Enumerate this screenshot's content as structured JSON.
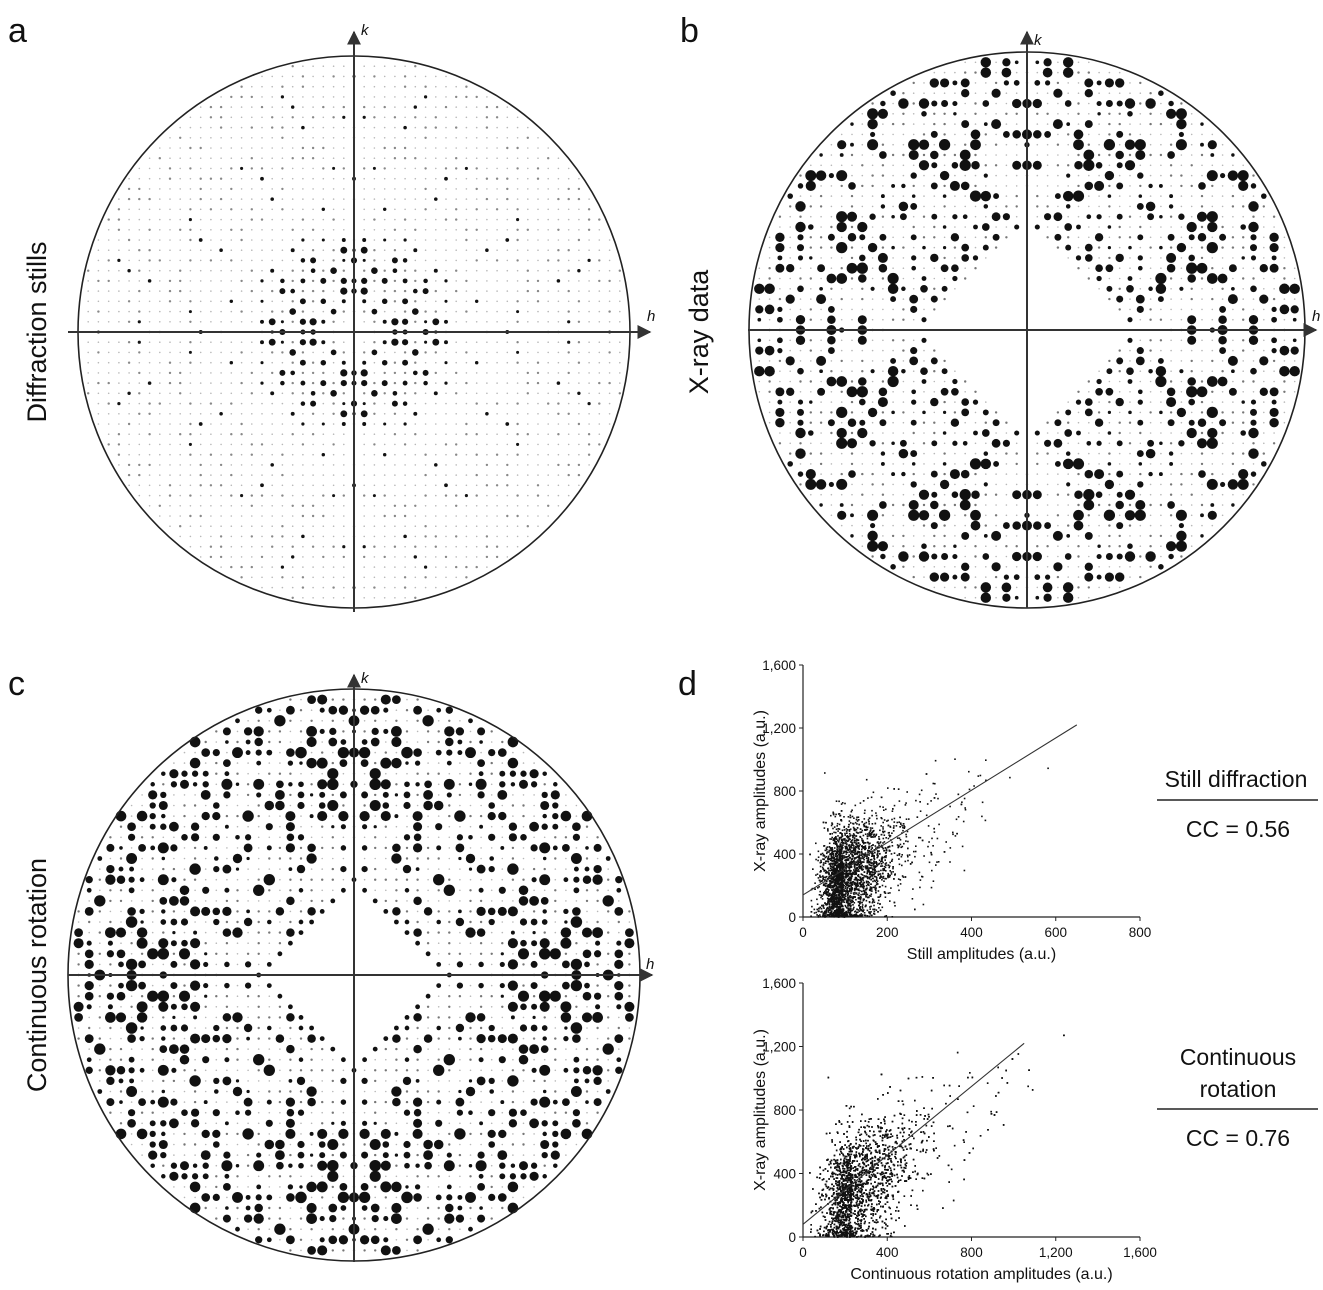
{
  "panels": {
    "a": {
      "letter": "a",
      "row_label": "Diffraction stills",
      "h": "h",
      "k": "k"
    },
    "b": {
      "letter": "b",
      "row_label": "X-ray data",
      "h": "h",
      "k": "k"
    },
    "c": {
      "letter": "c",
      "row_label": "Continuous rotation",
      "h": "h",
      "k": "k"
    },
    "d": {
      "letter": "d"
    }
  },
  "annotations": {
    "top": {
      "line1": "Still diffraction",
      "cc": "CC = 0.56"
    },
    "bottom": {
      "line1": "Continuous",
      "line2": "rotation",
      "cc": "CC = 0.76"
    }
  },
  "colors": {
    "ink": "#111111",
    "faint": "#b8b8b8"
  },
  "chart_data": [
    {
      "type": "heatmap",
      "name": "panel-a",
      "style": "precession image (h,k reciprocal-lattice spot map, spot size = intensity)",
      "xlabel": "h",
      "ylabel": "k",
      "title": "",
      "description_ref": "Diffraction stills",
      "grid_extent": 27,
      "strong_spots_near_origin": true,
      "symmetry": "4mm"
    },
    {
      "type": "heatmap",
      "name": "panel-b",
      "style": "precession image (h,k reciprocal-lattice spot map, spot size = intensity)",
      "xlabel": "h",
      "ylabel": "k",
      "title": "",
      "description_ref": "X-ray data",
      "grid_extent": 27,
      "central_empty_region": true,
      "symmetry": "4mm"
    },
    {
      "type": "heatmap",
      "name": "panel-c",
      "style": "precession image (h,k reciprocal-lattice spot map, spot size = intensity)",
      "xlabel": "h",
      "ylabel": "k",
      "title": "",
      "description_ref": "Continuous rotation",
      "grid_extent": 27,
      "central_empty_region": true,
      "symmetry": "4mm"
    },
    {
      "type": "scatter",
      "name": "still-vs-xray",
      "xlabel": "Still amplitudes (a.u.)",
      "ylabel": "X-ray amplitudes (a.u.)",
      "xlim": [
        0,
        800
      ],
      "ylim": [
        0,
        1600
      ],
      "xticks": [
        "0",
        "200",
        "400",
        "600",
        "800"
      ],
      "yticks": [
        "0",
        "400",
        "800",
        "1,200",
        "1,600"
      ],
      "n_points": 3200,
      "correlation": 0.56,
      "fit_line": {
        "x": [
          0,
          650
        ],
        "y": [
          140,
          1220
        ]
      },
      "cloud": {
        "x_center": 95,
        "x_spread": 55,
        "y_center": 240,
        "y_spread": 170
      }
    },
    {
      "type": "scatter",
      "name": "rotation-vs-xray",
      "xlabel": "Continuous rotation amplitudes (a.u.)",
      "ylabel": "X-ray amplitudes (a.u.)",
      "xlim": [
        0,
        1600
      ],
      "ylim": [
        0,
        1600
      ],
      "xticks": [
        "0",
        "400",
        "800",
        "1,200",
        "1,600"
      ],
      "yticks": [
        "0",
        "400",
        "800",
        "1,200",
        "1,600"
      ],
      "n_points": 3800,
      "correlation": 0.76,
      "fit_line": {
        "x": [
          0,
          1050
        ],
        "y": [
          80,
          1220
        ]
      },
      "cloud": {
        "x_center": 230,
        "x_spread": 140,
        "y_center": 280,
        "y_spread": 190
      }
    }
  ]
}
